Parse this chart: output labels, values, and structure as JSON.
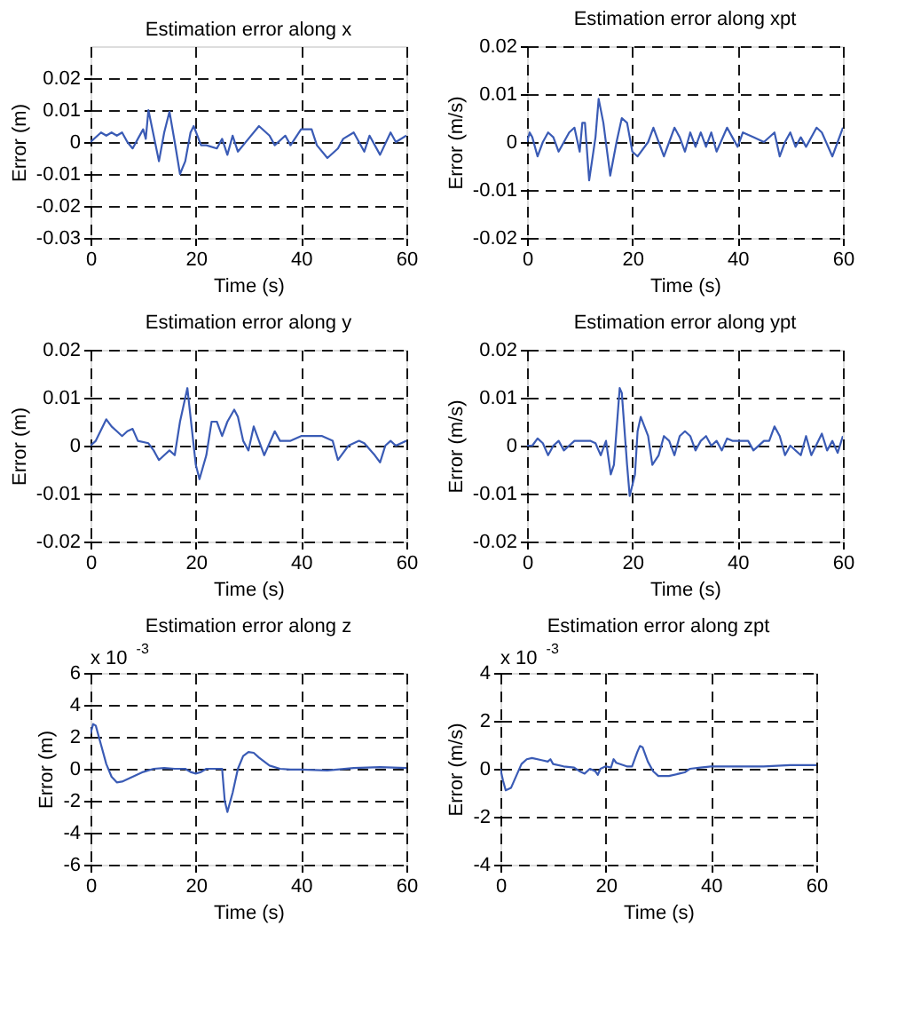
{
  "chart_data": [
    {
      "type": "line",
      "title": "Estimation error along x",
      "xlabel": "Time (s)",
      "ylabel": "Error (m)",
      "xlim": [
        0,
        60
      ],
      "xticks": [
        0,
        20,
        40,
        60
      ],
      "ylim": [
        -0.03,
        0.03
      ],
      "yticks": [
        -0.03,
        -0.02,
        -0.01,
        0,
        0.01,
        0.02
      ],
      "grid": true,
      "x": [
        0,
        2,
        3,
        4,
        5,
        6,
        7,
        8,
        9,
        10,
        10.5,
        11,
        12,
        13,
        14,
        15,
        16,
        17,
        18,
        19,
        19.6,
        21,
        22,
        24,
        25,
        26,
        27,
        28,
        30,
        32,
        34,
        35,
        37,
        38,
        40,
        42,
        43,
        45,
        47,
        48,
        50,
        52,
        53,
        55,
        57,
        58,
        60
      ],
      "series": [
        {
          "color": "#3a5bb5",
          "values": [
            0,
            0.003,
            0.002,
            0.003,
            0.002,
            0.003,
            0,
            -0.002,
            0.001,
            0.004,
            0.001,
            0.01,
            0.002,
            -0.006,
            0.003,
            0.0095,
            0,
            -0.01,
            -0.006,
            0.003,
            0.005,
            -0.001,
            -0.001,
            -0.002,
            0.001,
            -0.004,
            0.002,
            -0.003,
            0.001,
            0.005,
            0.002,
            -0.001,
            0.002,
            -0.001,
            0.004,
            0.004,
            -0.001,
            -0.005,
            -0.002,
            0.001,
            0.003,
            -0.003,
            0.002,
            -0.004,
            0.003,
            0,
            0.002
          ]
        }
      ]
    },
    {
      "type": "line",
      "title": "Estimation error along xpt",
      "xlabel": "Time (s)",
      "ylabel": "Error (m/s)",
      "xlim": [
        0,
        60
      ],
      "xticks": [
        0,
        20,
        40,
        60
      ],
      "ylim": [
        -0.02,
        0.02
      ],
      "yticks": [
        -0.02,
        -0.01,
        0,
        0.01,
        0.02
      ],
      "grid": true,
      "x": [
        0,
        0.5,
        1,
        2,
        3,
        4,
        5,
        6,
        7,
        8,
        9,
        10,
        10.5,
        11,
        11.8,
        13,
        13.6,
        14.5,
        15.8,
        17,
        18,
        19,
        20,
        21,
        23,
        24,
        25,
        26,
        27,
        28,
        29,
        30,
        31,
        32,
        33,
        34,
        35,
        36,
        38,
        39,
        40,
        41,
        43,
        45,
        47,
        48,
        49,
        50,
        51,
        52,
        53,
        55,
        56,
        58,
        59,
        60
      ],
      "series": [
        {
          "color": "#3a5bb5",
          "values": [
            0,
            0.002,
            0.001,
            -0.003,
            0,
            0.002,
            0.001,
            -0.002,
            0,
            0.002,
            0.003,
            -0.002,
            0.004,
            0.004,
            -0.008,
            0.001,
            0.009,
            0.004,
            -0.007,
            0,
            0.005,
            0.004,
            -0.002,
            -0.003,
            0,
            0.003,
            0,
            -0.003,
            0,
            0.003,
            0.001,
            -0.002,
            0.002,
            -0.001,
            0.002,
            -0.001,
            0.002,
            -0.002,
            0.003,
            0.001,
            -0.001,
            0.002,
            0.001,
            0,
            0.002,
            -0.003,
            0,
            0.002,
            -0.001,
            0.001,
            -0.001,
            0.003,
            0.002,
            -0.003,
            0,
            0.003
          ]
        }
      ]
    },
    {
      "type": "line",
      "title": "Estimation error along y",
      "xlabel": "Time (s)",
      "ylabel": "Error (m)",
      "xlim": [
        0,
        60
      ],
      "xticks": [
        0,
        20,
        40,
        60
      ],
      "ylim": [
        -0.02,
        0.02
      ],
      "yticks": [
        -0.02,
        -0.01,
        0,
        0.01,
        0.02
      ],
      "grid": true,
      "x": [
        0,
        1,
        3,
        4,
        5,
        6,
        7,
        8,
        9,
        11,
        12,
        13,
        14,
        15,
        16,
        17,
        18.4,
        19,
        20,
        20.7,
        22,
        23,
        24,
        25,
        26,
        27.3,
        28,
        29,
        30,
        31,
        32,
        33,
        35,
        36,
        38,
        40,
        42,
        44,
        46,
        47,
        49,
        51,
        52,
        54,
        55,
        56,
        57,
        58,
        60
      ],
      "series": [
        {
          "color": "#3a5bb5",
          "values": [
            0,
            0.001,
            0.0055,
            0.004,
            0.003,
            0.002,
            0.003,
            0.0035,
            0.001,
            0.0005,
            -0.001,
            -0.003,
            -0.002,
            -0.001,
            -0.002,
            0.005,
            0.012,
            0.006,
            -0.004,
            -0.007,
            -0.002,
            0.005,
            0.005,
            0.002,
            0.005,
            0.0075,
            0.006,
            0.001,
            -0.001,
            0.004,
            0.001,
            -0.002,
            0.003,
            0.001,
            0.001,
            0.002,
            0.002,
            0.002,
            0.001,
            -0.003,
            0,
            0.001,
            0.0005,
            -0.002,
            -0.0035,
            0,
            0.001,
            0,
            0.001
          ]
        }
      ]
    },
    {
      "type": "line",
      "title": "Estimation error along ypt",
      "xlabel": "Time (s)",
      "ylabel": "Error (m/s)",
      "xlim": [
        0,
        60
      ],
      "xticks": [
        0,
        20,
        40,
        60
      ],
      "ylim": [
        -0.02,
        0.02
      ],
      "yticks": [
        -0.02,
        -0.01,
        0,
        0.01,
        0.02
      ],
      "grid": true,
      "x": [
        0,
        1,
        2,
        3,
        4,
        5,
        6,
        7,
        8,
        9,
        10,
        12,
        13,
        14,
        15,
        15.9,
        16.5,
        17.6,
        18,
        19,
        19.5,
        20.5,
        21,
        21.6,
        23,
        23.8,
        25,
        26,
        27,
        28,
        29,
        30,
        31,
        32,
        33,
        34,
        35,
        36,
        37,
        38,
        39,
        40,
        42,
        43,
        45,
        46,
        47,
        48,
        49,
        50,
        52,
        53,
        54,
        56,
        57,
        58,
        59,
        60
      ],
      "series": [
        {
          "color": "#3a5bb5",
          "values": [
            0,
            0,
            0.0015,
            0.0005,
            -0.002,
            0,
            0.001,
            -0.001,
            0,
            0.001,
            0.001,
            0.001,
            0.0005,
            -0.002,
            0.001,
            -0.006,
            -0.004,
            0.012,
            0.011,
            -0.004,
            -0.0105,
            -0.006,
            0.003,
            0.006,
            0.002,
            -0.004,
            -0.002,
            0.002,
            0.001,
            -0.002,
            0.002,
            0.003,
            0.002,
            -0.001,
            0.001,
            0.002,
            0,
            0.001,
            -0.001,
            0.0015,
            0.001,
            0.001,
            0.001,
            -0.001,
            0.001,
            0.001,
            0.004,
            0.002,
            -0.002,
            0,
            -0.002,
            0.002,
            -0.002,
            0.0025,
            -0.001,
            0.001,
            -0.0015,
            0.002
          ]
        }
      ]
    },
    {
      "type": "line",
      "title": "Estimation error along z",
      "xlabel": "Time (s)",
      "ylabel": "Error (m)",
      "xlim": [
        0,
        60
      ],
      "xticks": [
        0,
        20,
        40,
        60
      ],
      "ylim": [
        -6,
        6
      ],
      "yticks": [
        -6,
        -4,
        -2,
        0,
        2,
        4,
        6
      ],
      "grid": true,
      "annotations": [
        "x 10$^{-3}$"
      ],
      "x": [
        0,
        0.5,
        1,
        2,
        3,
        4,
        5,
        6,
        8,
        10,
        12,
        14,
        16,
        18,
        19,
        20,
        21,
        22,
        24,
        25,
        25.5,
        26,
        27,
        28,
        29,
        30,
        31,
        32,
        34,
        36,
        38,
        40,
        45,
        50,
        55,
        60
      ],
      "series": [
        {
          "color": "#3a5bb5",
          "values": [
            2.2,
            2.8,
            2.7,
            1.5,
            0.3,
            -0.5,
            -0.85,
            -0.8,
            -0.5,
            -0.2,
            0,
            0.05,
            0,
            0,
            -0.2,
            -0.3,
            -0.2,
            0,
            0,
            0,
            -2,
            -2.7,
            -1.5,
            0,
            0.8,
            1.05,
            1.0,
            0.7,
            0.2,
            0,
            -0.05,
            -0.05,
            -0.1,
            0.05,
            0.1,
            0.05
          ]
        }
      ]
    },
    {
      "type": "line",
      "title": "Estimation error along zpt",
      "xlabel": "Time (s)",
      "ylabel": "Error (m/s)",
      "xlim": [
        0,
        60
      ],
      "xticks": [
        0,
        20,
        40,
        60
      ],
      "ylim": [
        -4,
        4
      ],
      "yticks": [
        -4,
        -2,
        0,
        2,
        4
      ],
      "grid": true,
      "annotations": [
        "x 10$^{-3}$"
      ],
      "x": [
        0,
        0.5,
        1,
        2,
        3,
        4,
        5,
        6,
        8,
        9,
        9.5,
        10,
        12,
        14,
        15,
        16,
        17,
        18,
        18.5,
        19,
        20,
        21,
        21.5,
        22,
        24,
        25,
        26,
        26.5,
        27,
        28,
        29,
        30,
        32,
        34,
        35,
        36,
        38,
        40,
        45,
        50,
        55,
        60
      ],
      "series": [
        {
          "color": "#3a5bb5",
          "values": [
            0,
            -0.5,
            -0.9,
            -0.8,
            -0.3,
            0.2,
            0.4,
            0.45,
            0.35,
            0.3,
            0.4,
            0.2,
            0.1,
            0.05,
            -0.1,
            -0.2,
            0,
            -0.1,
            -0.25,
            0,
            0.1,
            0.05,
            0.4,
            0.25,
            0.1,
            0.1,
            0.7,
            0.95,
            0.9,
            0.3,
            -0.1,
            -0.3,
            -0.3,
            -0.2,
            -0.15,
            0,
            0.05,
            0.1,
            0.1,
            0.1,
            0.15,
            0.15
          ]
        }
      ]
    }
  ]
}
